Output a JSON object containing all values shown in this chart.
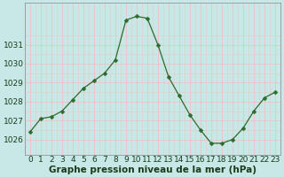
{
  "x": [
    0,
    1,
    2,
    3,
    4,
    5,
    6,
    7,
    8,
    9,
    10,
    11,
    12,
    13,
    14,
    15,
    16,
    17,
    18,
    19,
    20,
    21,
    22,
    23
  ],
  "y": [
    1026.4,
    1027.1,
    1027.2,
    1027.5,
    1028.1,
    1028.7,
    1029.1,
    1029.5,
    1030.2,
    1032.3,
    1032.5,
    1032.4,
    1031.0,
    1029.3,
    1028.3,
    1027.3,
    1026.5,
    1025.8,
    1025.8,
    1026.0,
    1026.6,
    1027.5,
    1028.2,
    1028.5
  ],
  "line_color": "#2d6a2d",
  "marker": "D",
  "marker_size": 2.5,
  "bg_color": "#c8e8e8",
  "major_grid_color": "#e8c8c8",
  "minor_grid_color": "#e8c8c8",
  "white_grid_color": "#ffffff",
  "xlabel": "Graphe pression niveau de la mer (hPa)",
  "xlabel_fontsize": 7.5,
  "ylabel_ticks": [
    1026,
    1027,
    1028,
    1029,
    1030,
    1031
  ],
  "ylim": [
    1025.2,
    1033.2
  ],
  "xlim": [
    -0.5,
    23.5
  ],
  "tick_fontsize": 6.5,
  "axis_label_color": "#1a3a1a"
}
